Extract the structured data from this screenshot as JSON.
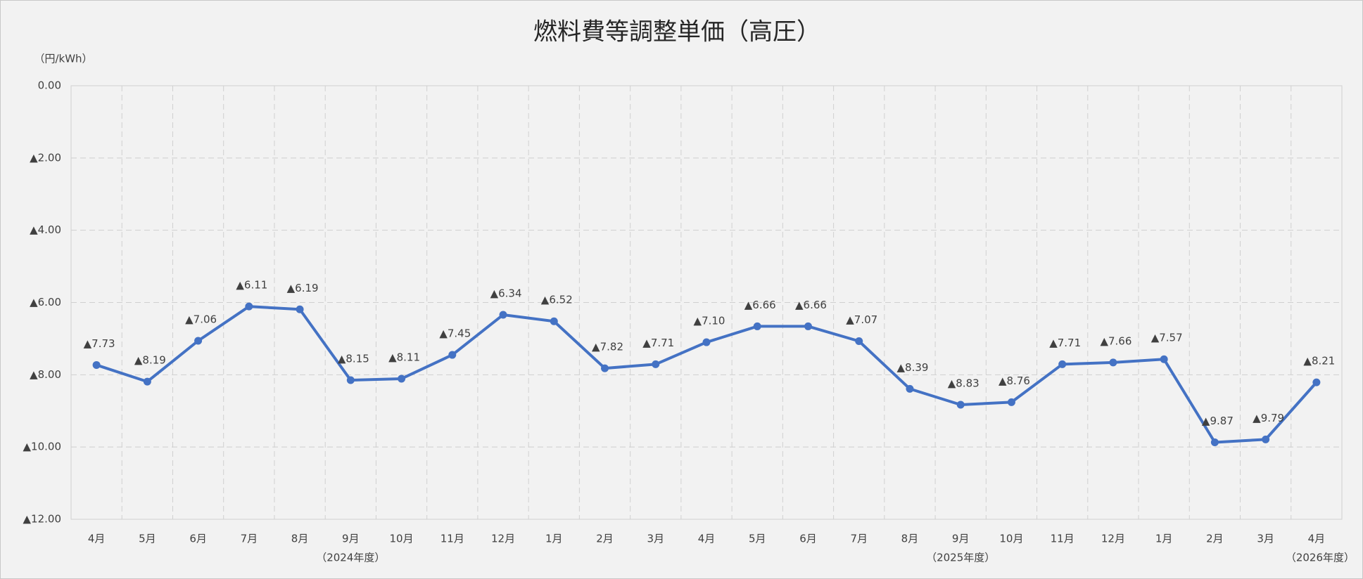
{
  "chart_data": {
    "type": "line",
    "title": "燃料費等調整単価（高圧）",
    "y_unit": "（円/kWh）",
    "categories": [
      "4月",
      "5月",
      "6月",
      "7月",
      "8月",
      "9月",
      "10月",
      "11月",
      "12月",
      "1月",
      "2月",
      "3月",
      "4月",
      "5月",
      "6月",
      "7月",
      "8月",
      "9月",
      "10月",
      "11月",
      "12月",
      "1月",
      "2月",
      "3月",
      "4月"
    ],
    "year_labels": [
      null,
      null,
      null,
      null,
      null,
      "（2024年度）",
      null,
      null,
      null,
      null,
      null,
      null,
      null,
      null,
      null,
      null,
      null,
      "（2025年度）",
      null,
      null,
      null,
      null,
      null,
      null,
      "（2026年度）"
    ],
    "values": [
      -7.73,
      -8.19,
      -7.06,
      -6.11,
      -6.19,
      -8.15,
      -8.11,
      -7.45,
      -6.34,
      -6.52,
      -7.82,
      -7.71,
      -7.1,
      -6.66,
      -6.66,
      -7.07,
      -8.39,
      -8.83,
      -8.76,
      -7.71,
      -7.66,
      -7.57,
      -9.87,
      -9.79,
      -8.21
    ],
    "value_labels": [
      "▲7.73",
      "▲8.19",
      "▲7.06",
      "▲6.11",
      "▲6.19",
      "▲8.15",
      "▲8.11",
      "▲7.45",
      "▲6.34",
      "▲6.52",
      "▲7.82",
      "▲7.71",
      "▲7.10",
      "▲6.66",
      "▲6.66",
      "▲7.07",
      "▲8.39",
      "▲8.83",
      "▲8.76",
      "▲7.71",
      "▲7.66",
      "▲7.57",
      "▲9.87",
      "▲9.79",
      "▲8.21"
    ],
    "color": "#4472c4",
    "ylim": [
      -12,
      0
    ],
    "yticks": [
      {
        "value": 0,
        "label": "0.00"
      },
      {
        "value": -2,
        "label": "▲2.00"
      },
      {
        "value": -4,
        "label": "▲4.00"
      },
      {
        "value": -6,
        "label": "▲6.00"
      },
      {
        "value": -8,
        "label": "▲8.00"
      },
      {
        "value": -10,
        "label": "▲10.00"
      },
      {
        "value": -12,
        "label": "▲12.00"
      }
    ],
    "grid": true
  }
}
